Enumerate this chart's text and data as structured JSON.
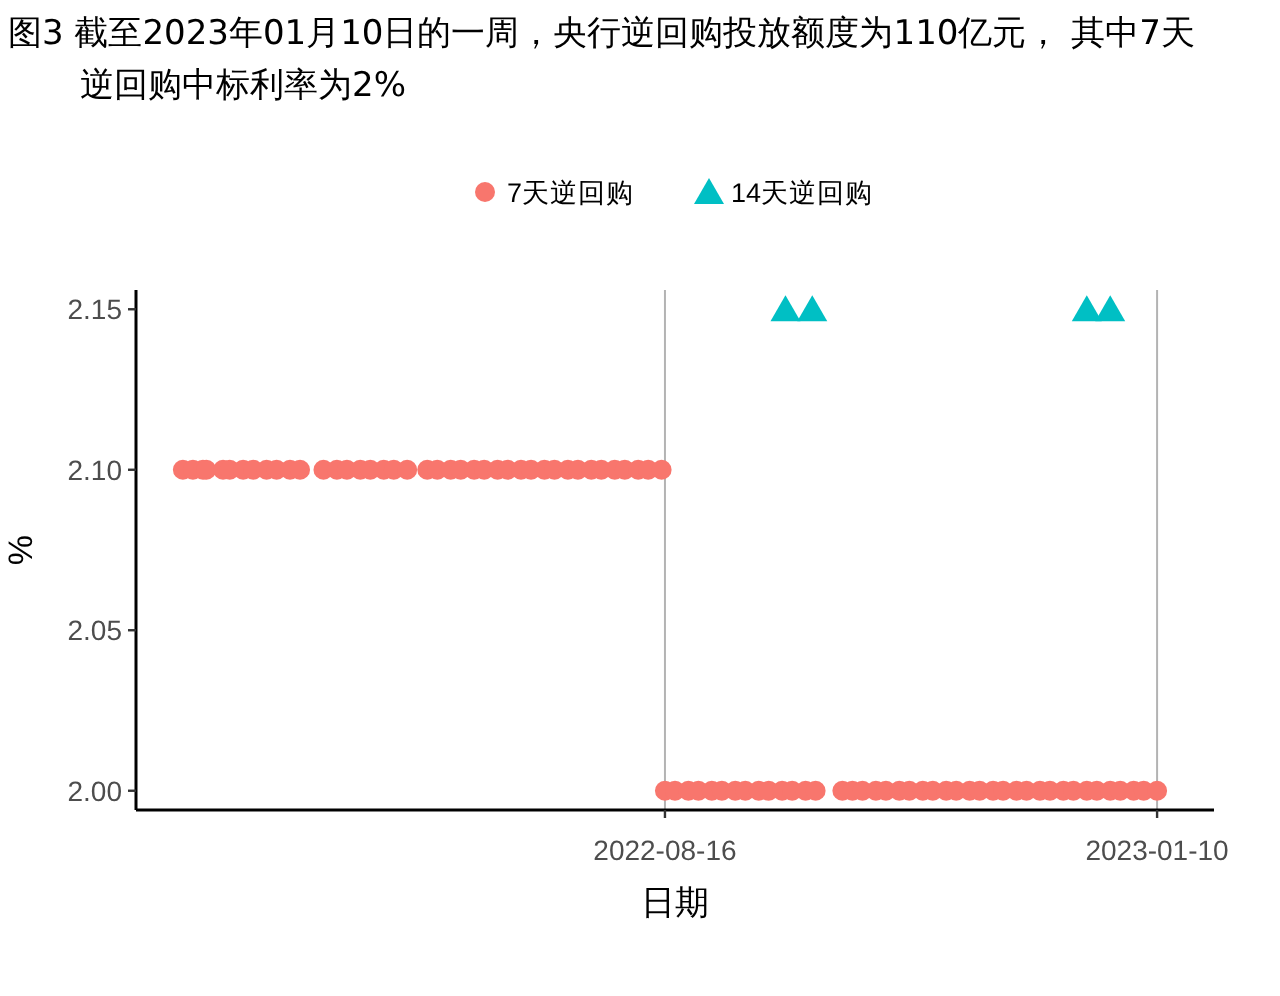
{
  "chart_data": {
    "type": "scatter",
    "title": "图3  截至2023年01月10日的一周，央行逆回购投放额度为110亿元， 其中7天逆回购中标利率为2%",
    "xlabel": "日期",
    "ylabel": "%",
    "xlim": [
      "2022-03-11",
      "2023-01-27"
    ],
    "xticks": [
      "2022-08-16",
      "2023-01-10"
    ],
    "ylim": [
      1.994,
      2.156
    ],
    "yticks": [
      {
        "value": 2,
        "label": "2.00"
      },
      {
        "value": 2.05,
        "label": "2.05"
      },
      {
        "value": 2.1,
        "label": "2.10"
      },
      {
        "value": 2.15,
        "label": "2.15"
      }
    ],
    "grid": "x",
    "legend": "top",
    "series": [
      {
        "name": "7天逆回购",
        "color": "#f8766d",
        "marker": "circle",
        "x": [
          "2022-03-25",
          "2022-03-28",
          "2022-03-31",
          "2022-04-01",
          "2022-04-06",
          "2022-04-08",
          "2022-04-12",
          "2022-04-15",
          "2022-04-19",
          "2022-04-22",
          "2022-04-26",
          "2022-04-29",
          "2022-05-06",
          "2022-05-10",
          "2022-05-13",
          "2022-05-17",
          "2022-05-20",
          "2022-05-24",
          "2022-05-27",
          "2022-05-31",
          "2022-06-06",
          "2022-06-09",
          "2022-06-13",
          "2022-06-16",
          "2022-06-20",
          "2022-06-23",
          "2022-06-27",
          "2022-06-30",
          "2022-07-04",
          "2022-07-07",
          "2022-07-11",
          "2022-07-14",
          "2022-07-18",
          "2022-07-21",
          "2022-07-25",
          "2022-07-28",
          "2022-08-01",
          "2022-08-04",
          "2022-08-08",
          "2022-08-11",
          "2022-08-15",
          "2022-08-16",
          "2022-08-19",
          "2022-08-23",
          "2022-08-26",
          "2022-08-30",
          "2022-09-02",
          "2022-09-06",
          "2022-09-09",
          "2022-09-13",
          "2022-09-16",
          "2022-09-20",
          "2022-09-23",
          "2022-09-27",
          "2022-09-30",
          "2022-10-08",
          "2022-10-11",
          "2022-10-14",
          "2022-10-18",
          "2022-10-21",
          "2022-10-25",
          "2022-10-28",
          "2022-11-01",
          "2022-11-04",
          "2022-11-08",
          "2022-11-11",
          "2022-11-15",
          "2022-11-18",
          "2022-11-22",
          "2022-11-25",
          "2022-11-29",
          "2022-12-02",
          "2022-12-06",
          "2022-12-09",
          "2022-12-13",
          "2022-12-16",
          "2022-12-20",
          "2022-12-23",
          "2022-12-27",
          "2022-12-30",
          "2023-01-03",
          "2023-01-06",
          "2023-01-10"
        ],
        "values": [
          2.1,
          2.1,
          2.1,
          2.1,
          2.1,
          2.1,
          2.1,
          2.1,
          2.1,
          2.1,
          2.1,
          2.1,
          2.1,
          2.1,
          2.1,
          2.1,
          2.1,
          2.1,
          2.1,
          2.1,
          2.1,
          2.1,
          2.1,
          2.1,
          2.1,
          2.1,
          2.1,
          2.1,
          2.1,
          2.1,
          2.1,
          2.1,
          2.1,
          2.1,
          2.1,
          2.1,
          2.1,
          2.1,
          2.1,
          2.1,
          2.1,
          2,
          2,
          2,
          2,
          2,
          2,
          2,
          2,
          2,
          2,
          2,
          2,
          2,
          2,
          2,
          2,
          2,
          2,
          2,
          2,
          2,
          2,
          2,
          2,
          2,
          2,
          2,
          2,
          2,
          2,
          2,
          2,
          2,
          2,
          2,
          2,
          2,
          2,
          2,
          2,
          2,
          2
        ]
      },
      {
        "name": "14天逆回购",
        "color": "#00bfc4",
        "marker": "triangle",
        "x": [
          "2022-09-21",
          "2022-09-29",
          "2022-12-20",
          "2022-12-27"
        ],
        "values": [
          2.15,
          2.15,
          2.15,
          2.15
        ]
      }
    ]
  }
}
